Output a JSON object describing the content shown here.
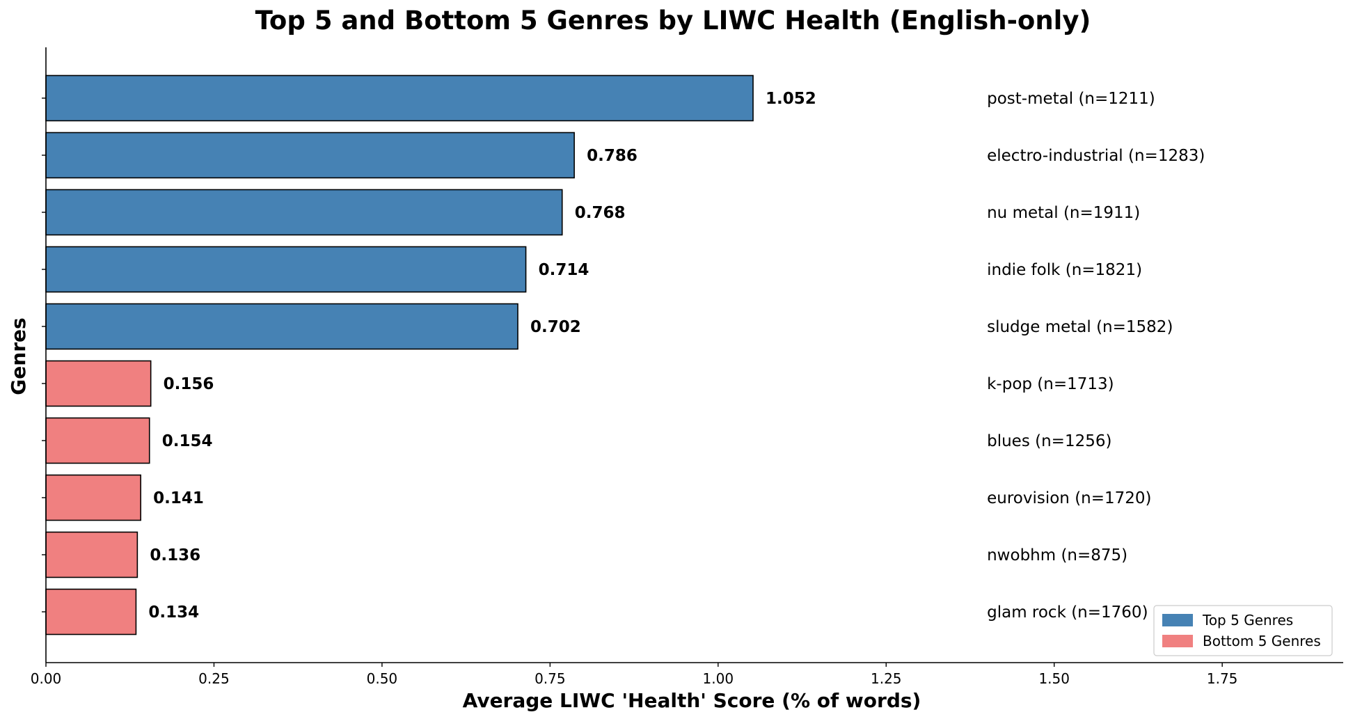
{
  "chart_data": {
    "type": "bar",
    "orientation": "horizontal",
    "title": "Top 5 and Bottom 5 Genres by LIWC Health (English-only)",
    "xlabel": "Average LIWC 'Health' Score (% of words)",
    "ylabel": "Genres",
    "xlim": [
      0,
      1.93
    ],
    "xticks": [
      "0.00",
      "0.25",
      "0.50",
      "0.75",
      "1.00",
      "1.25",
      "1.50",
      "1.75"
    ],
    "xtick_values": [
      0,
      0.25,
      0.5,
      0.75,
      1.0,
      1.25,
      1.5,
      1.75
    ],
    "grid": false,
    "legend_position": "bottom-right",
    "series": [
      {
        "name": "Top 5 Genres",
        "color": "#4682b4"
      },
      {
        "name": "Bottom 5 Genres",
        "color": "#f08080"
      }
    ],
    "bars": [
      {
        "value": 1.052,
        "value_label": "1.052",
        "annotation": "post-metal (n=1211)",
        "group": 0
      },
      {
        "value": 0.786,
        "value_label": "0.786",
        "annotation": "electro-industrial (n=1283)",
        "group": 0
      },
      {
        "value": 0.768,
        "value_label": "0.768",
        "annotation": "nu metal (n=1911)",
        "group": 0
      },
      {
        "value": 0.714,
        "value_label": "0.714",
        "annotation": "indie folk (n=1821)",
        "group": 0
      },
      {
        "value": 0.702,
        "value_label": "0.702",
        "annotation": "sludge metal (n=1582)",
        "group": 0
      },
      {
        "value": 0.156,
        "value_label": "0.156",
        "annotation": "k-pop (n=1713)",
        "group": 1
      },
      {
        "value": 0.154,
        "value_label": "0.154",
        "annotation": "blues (n=1256)",
        "group": 1
      },
      {
        "value": 0.141,
        "value_label": "0.141",
        "annotation": "eurovision (n=1720)",
        "group": 1
      },
      {
        "value": 0.136,
        "value_label": "0.136",
        "annotation": "nwobhm (n=875)",
        "group": 1
      },
      {
        "value": 0.134,
        "value_label": "0.134",
        "annotation": "glam rock (n=1760)",
        "group": 1
      }
    ],
    "annotation_x": 1.4
  }
}
